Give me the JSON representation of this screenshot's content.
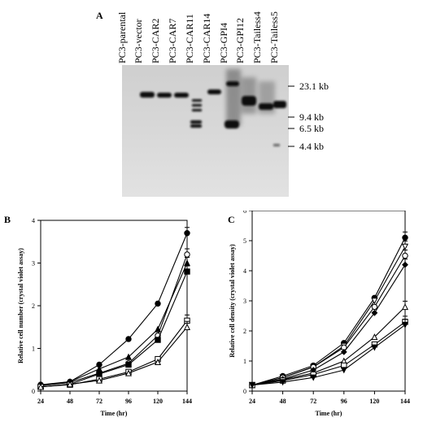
{
  "panels": {
    "a": "A",
    "b": "B",
    "c": "C"
  },
  "blot": {
    "lanes": [
      "PC3-parental",
      "PC3-vector",
      "PC3-CAR2",
      "PC3-CAR7",
      "PC3-CAR11",
      "PC3-CAR14",
      "PC3-GPI4",
      "PC3-GPI12",
      "PC3-Tailess4",
      "PC3-Tailess5"
    ],
    "markers": [
      "23.1 kb",
      "9.4 kb",
      "6.5 kb",
      "4.4 kb"
    ]
  },
  "chart_data": [
    {
      "type": "line",
      "panel": "B",
      "xlabel": "Time  (hr)",
      "ylabel": "Relative cell number  (crystal violet assay)",
      "x": [
        24,
        48,
        72,
        96,
        120,
        144
      ],
      "xlim": [
        24,
        144
      ],
      "ylim": [
        0,
        4
      ],
      "yticks": [
        0,
        1,
        2,
        3,
        4
      ],
      "series": [
        {
          "marker": "filled-circle",
          "values": [
            0.15,
            0.22,
            0.62,
            1.22,
            2.05,
            3.7
          ]
        },
        {
          "marker": "open-circle",
          "values": [
            0.13,
            0.2,
            0.42,
            0.65,
            1.3,
            3.2
          ]
        },
        {
          "marker": "filled-triangle",
          "values": [
            0.13,
            0.22,
            0.52,
            0.8,
            1.45,
            3.0
          ]
        },
        {
          "marker": "filled-square",
          "values": [
            0.1,
            0.16,
            0.4,
            0.62,
            1.2,
            2.8
          ]
        },
        {
          "marker": "open-square",
          "values": [
            0.1,
            0.15,
            0.28,
            0.45,
            0.75,
            1.65
          ]
        },
        {
          "marker": "open-triangle",
          "values": [
            0.1,
            0.16,
            0.25,
            0.42,
            0.68,
            1.5
          ]
        }
      ]
    },
    {
      "type": "line",
      "panel": "C",
      "xlabel": "Time  (hr)",
      "ylabel": "Relative cell density  (crystal violet assay)",
      "x": [
        24,
        48,
        72,
        96,
        120,
        144
      ],
      "xlim": [
        24,
        144
      ],
      "ylim": [
        0,
        6
      ],
      "yticks": [
        0,
        1,
        2,
        3,
        4,
        5,
        6
      ],
      "series": [
        {
          "marker": "filled-circle",
          "values": [
            0.2,
            0.5,
            0.85,
            1.6,
            3.1,
            5.1
          ]
        },
        {
          "marker": "open-triangle-inv",
          "values": [
            0.2,
            0.45,
            0.8,
            1.5,
            3.0,
            4.8
          ]
        },
        {
          "marker": "open-circle",
          "values": [
            0.2,
            0.45,
            0.8,
            1.45,
            2.8,
            4.5
          ]
        },
        {
          "marker": "filled-diamond",
          "values": [
            0.2,
            0.4,
            0.7,
            1.3,
            2.6,
            4.2
          ]
        },
        {
          "marker": "open-triangle",
          "values": [
            0.2,
            0.38,
            0.6,
            1.0,
            1.8,
            2.8
          ]
        },
        {
          "marker": "open-square",
          "values": [
            0.2,
            0.35,
            0.55,
            0.85,
            1.55,
            2.3
          ]
        },
        {
          "marker": "filled-triangle-inv",
          "values": [
            0.2,
            0.3,
            0.45,
            0.7,
            1.45,
            2.2
          ]
        }
      ]
    }
  ]
}
